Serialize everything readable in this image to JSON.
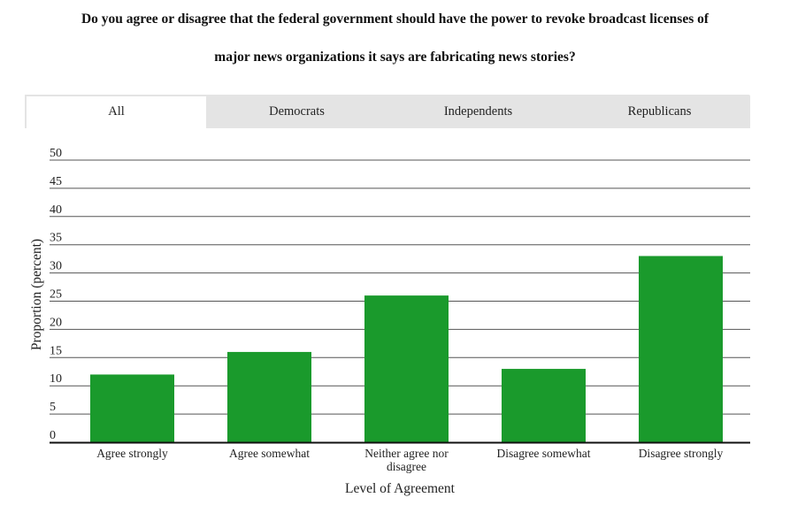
{
  "title_lines": [
    "Do you agree or disagree that the federal government should have the power to revoke broadcast licenses of",
    "major news organizations it says are fabricating news stories?"
  ],
  "tabs": [
    {
      "label": "All",
      "active": true
    },
    {
      "label": "Democrats",
      "active": false
    },
    {
      "label": "Independents",
      "active": false
    },
    {
      "label": "Republicans",
      "active": false
    }
  ],
  "chart_data": {
    "type": "bar",
    "title": "Do you agree or disagree that the federal government should have the power to revoke broadcast licenses of major news organizations it says are fabricating news stories?",
    "categories": [
      [
        "Agree strongly"
      ],
      [
        "Agree somewhat"
      ],
      [
        "Neither agree nor",
        "disagree"
      ],
      [
        "Disagree somewhat"
      ],
      [
        "Disagree strongly"
      ]
    ],
    "values": [
      12,
      16,
      26,
      13,
      33
    ],
    "xlabel": "Level of Agreement",
    "ylabel": "Proportion (percent)",
    "ylim": [
      0,
      50
    ],
    "yticks": [
      0,
      5,
      10,
      15,
      20,
      25,
      30,
      35,
      40,
      45,
      50
    ],
    "grid": true,
    "bar_color": "#1a9a2c"
  }
}
